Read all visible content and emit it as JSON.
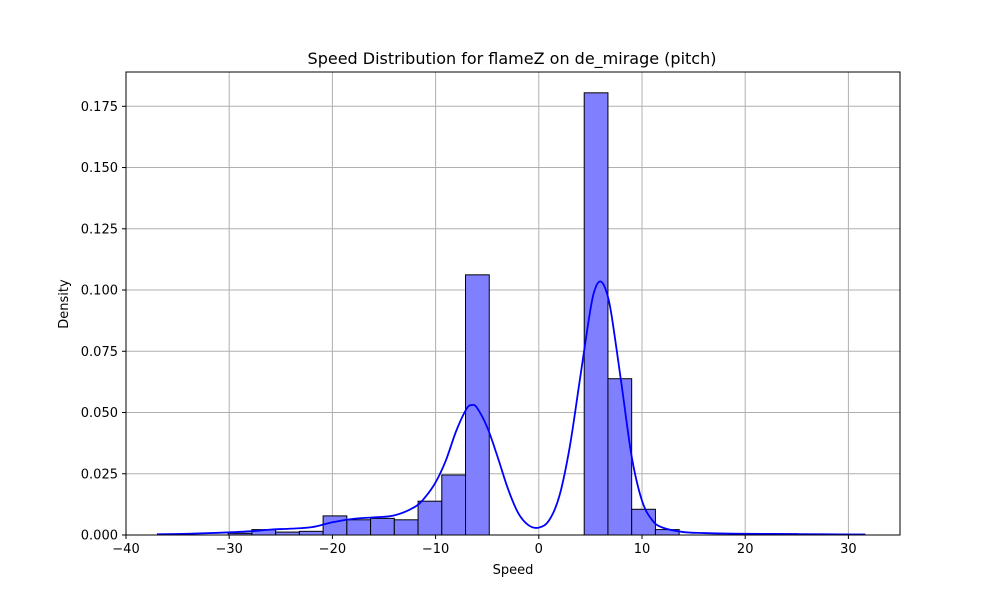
{
  "chart_data": {
    "type": "bar",
    "title": "Speed Distribution for flameZ on de_mirage (pitch)",
    "xlabel": "Speed",
    "ylabel": "Density",
    "xlim": [
      -40,
      35
    ],
    "ylim": [
      0,
      0.189
    ],
    "xticks": [
      -40,
      -30,
      -20,
      -10,
      0,
      10,
      20,
      30
    ],
    "yticks": [
      0.0,
      0.025,
      0.05,
      0.075,
      0.1,
      0.125,
      0.15,
      0.175
    ],
    "xtick_labels": [
      "−40",
      "−30",
      "−20",
      "−10",
      "0",
      "10",
      "20",
      "30"
    ],
    "ytick_labels": [
      "0.000",
      "0.025",
      "0.050",
      "0.075",
      "0.100",
      "0.125",
      "0.150",
      "0.175"
    ],
    "grid": true,
    "bar_color": "#8080ff",
    "bar_edge_color": "#000000",
    "kde_color": "#0000ff",
    "bins": [
      {
        "x0": -37.0,
        "x1": -34.7,
        "value": 0.0
      },
      {
        "x0": -34.7,
        "x1": -32.4,
        "value": 0.0
      },
      {
        "x0": -32.4,
        "x1": -30.1,
        "value": 0.0
      },
      {
        "x0": -30.1,
        "x1": -27.8,
        "value": 0.0007
      },
      {
        "x0": -27.8,
        "x1": -25.5,
        "value": 0.0022
      },
      {
        "x0": -25.5,
        "x1": -23.2,
        "value": 0.0012
      },
      {
        "x0": -23.2,
        "x1": -20.9,
        "value": 0.0015
      },
      {
        "x0": -20.9,
        "x1": -18.6,
        "value": 0.0078
      },
      {
        "x0": -18.6,
        "x1": -16.3,
        "value": 0.0062
      },
      {
        "x0": -16.3,
        "x1": -14.0,
        "value": 0.0068
      },
      {
        "x0": -14.0,
        "x1": -11.7,
        "value": 0.0062
      },
      {
        "x0": -11.7,
        "x1": -9.4,
        "value": 0.0138
      },
      {
        "x0": -9.4,
        "x1": -7.1,
        "value": 0.0245
      },
      {
        "x0": -7.1,
        "x1": -4.8,
        "value": 0.1062
      },
      {
        "x0": -4.8,
        "x1": -2.5,
        "value": 0.0
      },
      {
        "x0": -2.5,
        "x1": -0.2,
        "value": 0.0
      },
      {
        "x0": -0.2,
        "x1": 2.1,
        "value": 0.0
      },
      {
        "x0": 2.1,
        "x1": 4.4,
        "value": 0.0
      },
      {
        "x0": 4.4,
        "x1": 6.7,
        "value": 0.1805
      },
      {
        "x0": 6.7,
        "x1": 9.0,
        "value": 0.0638
      },
      {
        "x0": 9.0,
        "x1": 11.3,
        "value": 0.0105
      },
      {
        "x0": 11.3,
        "x1": 13.6,
        "value": 0.0022
      },
      {
        "x0": 13.6,
        "x1": 15.9,
        "value": 0.0
      },
      {
        "x0": 15.9,
        "x1": 18.2,
        "value": 0.0
      },
      {
        "x0": 18.2,
        "x1": 20.5,
        "value": 0.0
      },
      {
        "x0": 20.5,
        "x1": 22.8,
        "value": 0.0
      },
      {
        "x0": 22.8,
        "x1": 25.1,
        "value": 0.0005
      },
      {
        "x0": 25.1,
        "x1": 27.4,
        "value": 0.0
      },
      {
        "x0": 27.4,
        "x1": 29.7,
        "value": 0.0
      },
      {
        "x0": 29.7,
        "x1": 31.6,
        "value": 0.0003
      }
    ],
    "kde": {
      "x": [
        -37,
        -34,
        -31,
        -28,
        -26,
        -24,
        -22,
        -20,
        -18,
        -16,
        -14,
        -12,
        -11,
        -10,
        -9,
        -8,
        -7,
        -6.5,
        -6,
        -5,
        -4,
        -3,
        -2,
        -1,
        0,
        1,
        2,
        3,
        4,
        5,
        5.5,
        6,
        6.5,
        7,
        8,
        9,
        10,
        11,
        12,
        14,
        16,
        18,
        20,
        24,
        28,
        31.6
      ],
      "y": [
        0.0003,
        0.0005,
        0.0009,
        0.0015,
        0.0022,
        0.0026,
        0.0032,
        0.0052,
        0.0066,
        0.0072,
        0.008,
        0.0115,
        0.0155,
        0.0215,
        0.0305,
        0.0425,
        0.0515,
        0.053,
        0.052,
        0.044,
        0.032,
        0.019,
        0.009,
        0.004,
        0.003,
        0.006,
        0.016,
        0.036,
        0.064,
        0.092,
        0.101,
        0.1035,
        0.1,
        0.091,
        0.062,
        0.032,
        0.014,
        0.006,
        0.003,
        0.0012,
        0.0008,
        0.0006,
        0.0005,
        0.0004,
        0.0003,
        0.0002
      ]
    }
  }
}
